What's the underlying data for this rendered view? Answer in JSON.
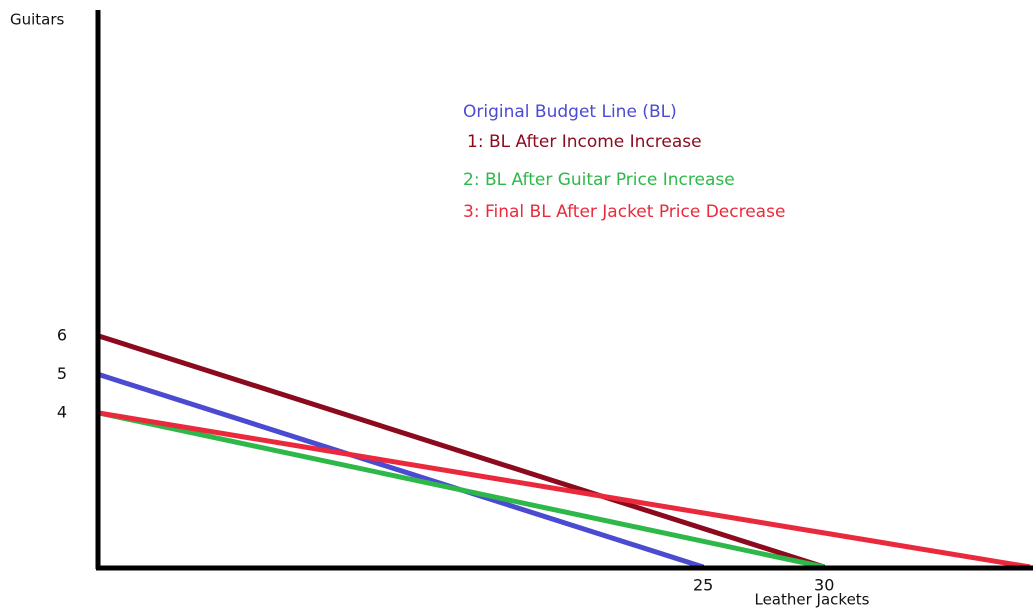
{
  "chart_data": {
    "type": "line",
    "x_label": "Leather Jackets",
    "y_label": "Guitars",
    "xlim": [
      0,
      38.5
    ],
    "ylim": [
      0,
      14.4
    ],
    "xticks": [
      25,
      30
    ],
    "yticks": [
      4,
      5,
      6
    ],
    "series": [
      {
        "name": "Original Budget Line (BL)",
        "color": "#4b4bd2",
        "x": [
          0,
          25
        ],
        "values": [
          5,
          0
        ]
      },
      {
        "name": "1: BL After Income Increase",
        "color": "#8b0a1e",
        "x": [
          0,
          30
        ],
        "values": [
          6,
          0
        ]
      },
      {
        "name": "2: BL After Guitar Price Increase",
        "color": "#2fb84a",
        "x": [
          0,
          30
        ],
        "values": [
          4,
          0
        ]
      },
      {
        "name": "3: Final BL After Jacket Price Decrease",
        "color": "#ea2a3c",
        "x": [
          0,
          38.5
        ],
        "values": [
          4,
          0
        ]
      }
    ]
  }
}
